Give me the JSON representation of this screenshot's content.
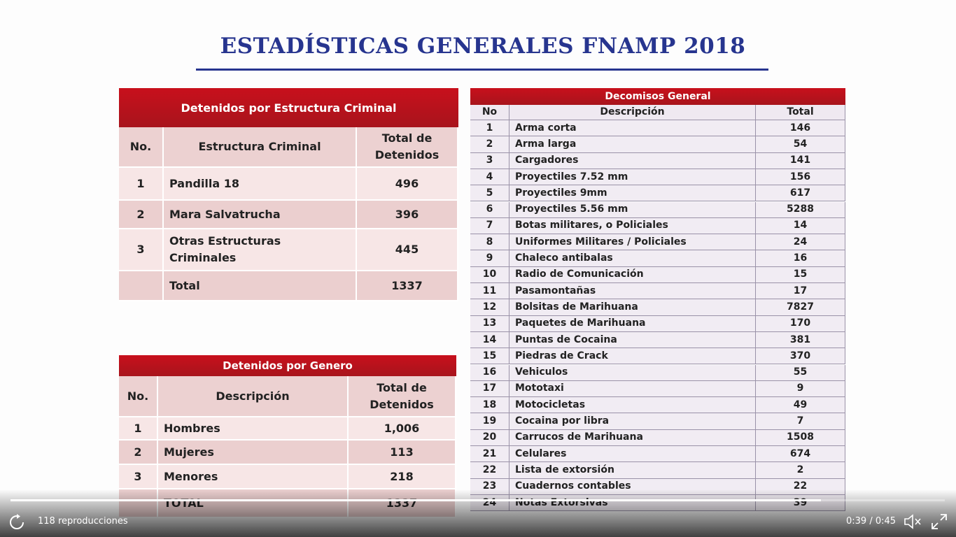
{
  "title": "ESTADÍSTICAS GENERALES FNAMP 2018",
  "table1": {
    "title": "Detenidos  por Estructura Criminal",
    "headers": [
      "No.",
      "Estructura Criminal",
      "Total de Detenidos"
    ],
    "rows": [
      [
        "1",
        "Pandilla 18",
        "496"
      ],
      [
        "2",
        "Mara Salvatrucha",
        "396"
      ],
      [
        "3",
        "Otras Estructuras Criminales",
        "445"
      ],
      [
        "",
        "Total",
        "1337"
      ]
    ]
  },
  "table2": {
    "title": "Detenidos  por Genero",
    "headers": [
      "No.",
      "Descripción",
      "Total de Detenidos"
    ],
    "rows": [
      [
        "1",
        "Hombres",
        "1,006"
      ],
      [
        "2",
        "Mujeres",
        "113"
      ],
      [
        "3",
        "Menores",
        "218"
      ],
      [
        "",
        "TOTAL",
        "1337"
      ]
    ]
  },
  "table3": {
    "title": "Decomisos General",
    "headers": [
      "No",
      "Descripción",
      "Total"
    ],
    "rows": [
      [
        "1",
        "Arma corta",
        "146"
      ],
      [
        "2",
        "Arma larga",
        "54"
      ],
      [
        "3",
        "Cargadores",
        "141"
      ],
      [
        "4",
        "Proyectiles 7.52 mm",
        "156"
      ],
      [
        "5",
        "Proyectiles 9mm",
        "617"
      ],
      [
        "6",
        "Proyectiles 5.56 mm",
        "5288"
      ],
      [
        "7",
        "Botas militares,  o Policiales",
        "14"
      ],
      [
        "8",
        "Uniformes  Militares  / Policiales",
        "24"
      ],
      [
        "9",
        "Chaleco  antibalas",
        "16"
      ],
      [
        "10",
        "Radio de Comunicación",
        "15"
      ],
      [
        "11",
        "Pasamontañas",
        "17"
      ],
      [
        "12",
        "Bolsitas de Marihuana",
        "7827"
      ],
      [
        "13",
        "Paquetes  de Marihuana",
        "170"
      ],
      [
        "14",
        "Puntas de Cocaina",
        "381"
      ],
      [
        "15",
        "Piedras de Crack",
        "370"
      ],
      [
        "16",
        "Vehiculos",
        "55"
      ],
      [
        "17",
        "Mototaxi",
        "9"
      ],
      [
        "18",
        "Motocicletas",
        "49"
      ],
      [
        "19",
        "Cocaina por libra",
        "7"
      ],
      [
        "20",
        "Carrucos  de Marihuana",
        "1508"
      ],
      [
        "21",
        "Celulares",
        "674"
      ],
      [
        "22",
        "Lista de extorsión",
        "2"
      ],
      [
        "23",
        "Cuadernos  contables",
        "22"
      ],
      [
        "24",
        "Notas  Extorsivas",
        "39"
      ]
    ]
  },
  "player": {
    "views": "118 reproducciones",
    "time": "0:39 / 0:45"
  }
}
